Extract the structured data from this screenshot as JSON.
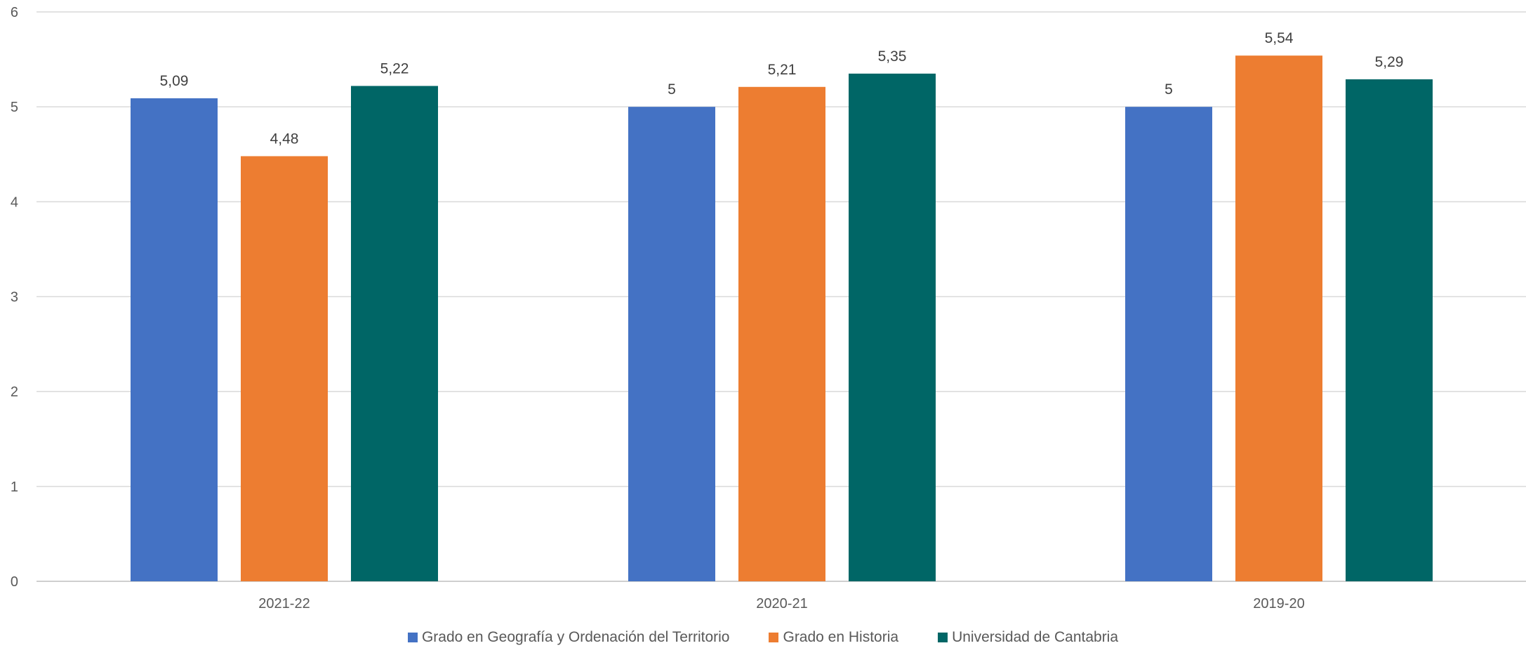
{
  "chart_data": {
    "type": "bar",
    "title": "",
    "xlabel": "",
    "ylabel": "",
    "categories": [
      "2021-22",
      "2020-21",
      "2019-20"
    ],
    "series": [
      {
        "name": "Grado en Geografía y Ordenación del Territorio",
        "color": "#4472C4",
        "values": [
          5.09,
          5,
          5
        ],
        "labels": [
          "5,09",
          "5",
          "5"
        ]
      },
      {
        "name": "Grado en Historia",
        "color": "#ED7D31",
        "values": [
          4.48,
          5.21,
          5.54
        ],
        "labels": [
          "4,48",
          "5,21",
          "5,54"
        ]
      },
      {
        "name": "Universidad de Cantabria",
        "color": "#006666",
        "values": [
          5.22,
          5.35,
          5.29
        ],
        "labels": [
          "5,22",
          "5,35",
          "5,29"
        ]
      }
    ],
    "ylim": [
      0,
      6
    ],
    "yticks": [
      "0",
      "1",
      "2",
      "3",
      "4",
      "5",
      "6"
    ],
    "grid": true,
    "legend_position": "bottom"
  }
}
